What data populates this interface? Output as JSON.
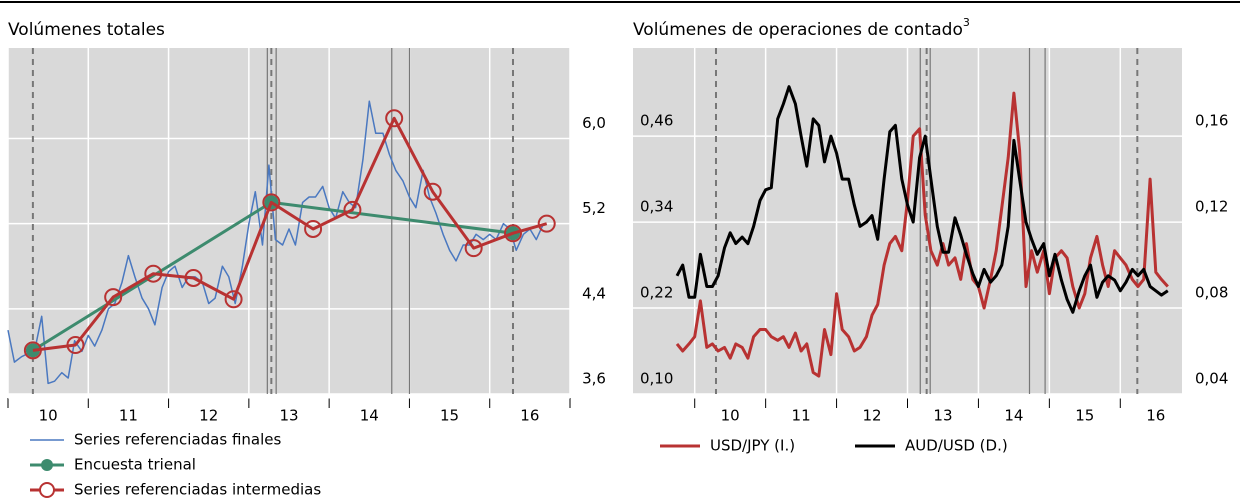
{
  "chart_data": [
    {
      "type": "line",
      "title": "Volúmenes totales",
      "yaxis_side": "right",
      "xlim": [
        10,
        17
      ],
      "xticks": [
        10,
        11,
        12,
        13,
        14,
        15,
        16,
        17
      ],
      "xtick_labels": [
        {
          "value": 10.5,
          "label": "10"
        },
        {
          "value": 11.5,
          "label": "11"
        },
        {
          "value": 12.5,
          "label": "12"
        },
        {
          "value": 13.5,
          "label": "13"
        },
        {
          "value": 14.5,
          "label": "14"
        },
        {
          "value": 15.5,
          "label": "15"
        },
        {
          "value": 16.5,
          "label": "16"
        }
      ],
      "ylim": [
        3.6,
        6.85
      ],
      "yticks": [
        {
          "value": 3.6,
          "label": "3,6"
        },
        {
          "value": 4.4,
          "label": "4,4"
        },
        {
          "value": 5.2,
          "label": "5,2"
        },
        {
          "value": 6.0,
          "label": "6,0"
        }
      ],
      "grid": true,
      "dashed_lines": [
        10.31,
        13.28,
        16.29
      ],
      "solid_lines": [
        13.23,
        13.34,
        14.78,
        15.0
      ],
      "series": [
        {
          "name": "Series referenciadas finales",
          "color": "#4a78c0",
          "marker": "none",
          "x": [
            10.0,
            10.08,
            10.17,
            10.25,
            10.33,
            10.42,
            10.5,
            10.58,
            10.67,
            10.75,
            10.83,
            10.92,
            11.0,
            11.08,
            11.17,
            11.25,
            11.33,
            11.42,
            11.5,
            11.58,
            11.67,
            11.75,
            11.83,
            11.92,
            12.0,
            12.08,
            12.17,
            12.25,
            12.33,
            12.42,
            12.5,
            12.58,
            12.67,
            12.75,
            12.83,
            12.92,
            13.0,
            13.08,
            13.17,
            13.25,
            13.33,
            13.42,
            13.5,
            13.58,
            13.67,
            13.75,
            13.83,
            13.92,
            14.0,
            14.08,
            14.17,
            14.25,
            14.33,
            14.42,
            14.5,
            14.58,
            14.67,
            14.75,
            14.83,
            14.92,
            15.0,
            15.08,
            15.17,
            15.25,
            15.33,
            15.42,
            15.5,
            15.58,
            15.67,
            15.75,
            15.83,
            15.92,
            16.0,
            16.08,
            16.17,
            16.25,
            16.33,
            16.42,
            16.5,
            16.58,
            16.67
          ],
          "values": [
            4.2,
            3.9,
            3.95,
            3.98,
            4.0,
            4.33,
            3.7,
            3.72,
            3.8,
            3.75,
            4.1,
            4.0,
            4.15,
            4.05,
            4.2,
            4.4,
            4.45,
            4.65,
            4.9,
            4.7,
            4.5,
            4.4,
            4.25,
            4.6,
            4.75,
            4.8,
            4.6,
            4.7,
            4.7,
            4.65,
            4.45,
            4.5,
            4.8,
            4.7,
            4.45,
            4.8,
            5.2,
            5.5,
            5.0,
            5.75,
            5.05,
            5.0,
            5.15,
            5.0,
            5.4,
            5.45,
            5.45,
            5.55,
            5.35,
            5.25,
            5.5,
            5.4,
            5.35,
            5.8,
            6.35,
            6.05,
            6.05,
            5.85,
            5.7,
            5.6,
            5.45,
            5.35,
            5.7,
            5.45,
            5.3,
            5.1,
            4.95,
            4.85,
            5.0,
            5.0,
            5.1,
            5.05,
            5.1,
            5.05,
            5.2,
            5.15,
            4.95,
            5.1,
            5.15,
            5.05,
            5.2
          ]
        },
        {
          "name": "Encuesta trienal",
          "color": "#3d8b6e",
          "marker": "filled-circle",
          "x": [
            10.31,
            13.28,
            16.29
          ],
          "values": [
            4.01,
            5.4,
            5.11
          ]
        },
        {
          "name": "Series referenciadas intermedias",
          "color": "#b83232",
          "marker": "open-circle",
          "x": [
            10.31,
            10.84,
            11.31,
            11.81,
            12.31,
            12.81,
            13.28,
            13.8,
            14.29,
            14.81,
            15.29,
            15.8,
            16.29,
            16.71
          ],
          "values": [
            4.01,
            4.06,
            4.51,
            4.73,
            4.69,
            4.49,
            5.4,
            5.15,
            5.33,
            6.19,
            5.5,
            4.97,
            5.11,
            5.2
          ]
        }
      ]
    },
    {
      "type": "line",
      "title": "Volúmenes de operaciones de contado",
      "title_note": "3",
      "xlim": [
        9.13,
        16.87
      ],
      "xticks": [
        10,
        11,
        12,
        13,
        14,
        15,
        16
      ],
      "xtick_labels": [
        {
          "value": 10.5,
          "label": "10"
        },
        {
          "value": 11.5,
          "label": "11"
        },
        {
          "value": 12.5,
          "label": "12"
        },
        {
          "value": 13.5,
          "label": "13"
        },
        {
          "value": 14.5,
          "label": "14"
        },
        {
          "value": 15.5,
          "label": "15"
        },
        {
          "value": 16.5,
          "label": "16"
        }
      ],
      "ylim": [
        0.1,
        0.583
      ],
      "yticks": [
        {
          "value": 0.1,
          "label": "0,10"
        },
        {
          "value": 0.22,
          "label": "0,22"
        },
        {
          "value": 0.34,
          "label": "0,34"
        },
        {
          "value": 0.46,
          "label": "0,46"
        }
      ],
      "y2lim": [
        0.04,
        0.201
      ],
      "y2ticks": [
        {
          "value": 0.04,
          "label": "0,04"
        },
        {
          "value": 0.08,
          "label": "0,08"
        },
        {
          "value": 0.12,
          "label": "0,12"
        },
        {
          "value": 0.16,
          "label": "0,16"
        }
      ],
      "grid": true,
      "dashed_lines": [
        10.3,
        13.27,
        16.24
      ],
      "solid_lines": [
        13.18,
        13.32,
        14.72,
        14.94
      ],
      "series": [
        {
          "name": "USD/JPY (I.)",
          "color": "#b83232",
          "marker": "none",
          "axis": "y",
          "x": [
            9.75,
            9.83,
            9.92,
            10.0,
            10.08,
            10.17,
            10.25,
            10.33,
            10.42,
            10.5,
            10.58,
            10.67,
            10.75,
            10.83,
            10.92,
            11.0,
            11.08,
            11.17,
            11.25,
            11.33,
            11.42,
            11.5,
            11.58,
            11.67,
            11.75,
            11.83,
            11.92,
            12.0,
            12.08,
            12.17,
            12.25,
            12.33,
            12.42,
            12.5,
            12.58,
            12.67,
            12.75,
            12.83,
            12.92,
            13.0,
            13.08,
            13.17,
            13.25,
            13.33,
            13.42,
            13.5,
            13.58,
            13.67,
            13.75,
            13.83,
            13.92,
            14.0,
            14.08,
            14.17,
            14.25,
            14.33,
            14.42,
            14.5,
            14.58,
            14.67,
            14.75,
            14.83,
            14.92,
            15.0,
            15.08,
            15.17,
            15.25,
            15.33,
            15.42,
            15.5,
            15.58,
            15.67,
            15.75,
            15.83,
            15.92,
            16.0,
            16.08,
            16.17,
            16.25,
            16.33,
            16.42,
            16.5,
            16.58,
            16.67
          ],
          "values": [
            0.17,
            0.16,
            0.17,
            0.18,
            0.23,
            0.165,
            0.17,
            0.16,
            0.165,
            0.15,
            0.17,
            0.165,
            0.15,
            0.18,
            0.19,
            0.19,
            0.18,
            0.175,
            0.18,
            0.165,
            0.185,
            0.16,
            0.17,
            0.13,
            0.125,
            0.19,
            0.155,
            0.24,
            0.19,
            0.18,
            0.16,
            0.165,
            0.18,
            0.21,
            0.225,
            0.28,
            0.31,
            0.32,
            0.3,
            0.37,
            0.46,
            0.47,
            0.35,
            0.3,
            0.28,
            0.31,
            0.28,
            0.29,
            0.26,
            0.31,
            0.26,
            0.25,
            0.22,
            0.26,
            0.3,
            0.36,
            0.43,
            0.52,
            0.44,
            0.25,
            0.3,
            0.27,
            0.3,
            0.24,
            0.29,
            0.3,
            0.29,
            0.25,
            0.22,
            0.24,
            0.29,
            0.32,
            0.28,
            0.25,
            0.3,
            0.29,
            0.28,
            0.26,
            0.25,
            0.26,
            0.4,
            0.27,
            0.26,
            0.25
          ]
        },
        {
          "name": "AUD/USD (D.)",
          "color": "#000000",
          "marker": "none",
          "axis": "y2",
          "x": [
            9.75,
            9.83,
            9.92,
            10.0,
            10.08,
            10.17,
            10.25,
            10.33,
            10.42,
            10.5,
            10.58,
            10.67,
            10.75,
            10.83,
            10.92,
            11.0,
            11.08,
            11.17,
            11.25,
            11.33,
            11.42,
            11.5,
            11.58,
            11.67,
            11.75,
            11.83,
            11.92,
            12.0,
            12.08,
            12.17,
            12.25,
            12.33,
            12.42,
            12.5,
            12.58,
            12.67,
            12.75,
            12.83,
            12.92,
            13.0,
            13.08,
            13.17,
            13.25,
            13.33,
            13.42,
            13.5,
            13.58,
            13.67,
            13.75,
            13.83,
            13.92,
            14.0,
            14.08,
            14.17,
            14.25,
            14.33,
            14.42,
            14.5,
            14.58,
            14.67,
            14.75,
            14.83,
            14.92,
            15.0,
            15.08,
            15.17,
            15.25,
            15.33,
            15.42,
            15.5,
            15.58,
            15.67,
            15.75,
            15.83,
            15.92,
            16.0,
            16.08,
            16.17,
            16.25,
            16.33,
            16.42,
            16.5,
            16.58,
            16.67
          ],
          "values": [
            0.095,
            0.1,
            0.085,
            0.085,
            0.105,
            0.09,
            0.09,
            0.095,
            0.108,
            0.115,
            0.11,
            0.113,
            0.11,
            0.118,
            0.13,
            0.135,
            0.136,
            0.168,
            0.175,
            0.183,
            0.175,
            0.16,
            0.146,
            0.168,
            0.165,
            0.148,
            0.16,
            0.152,
            0.14,
            0.14,
            0.128,
            0.118,
            0.12,
            0.123,
            0.112,
            0.14,
            0.162,
            0.165,
            0.14,
            0.128,
            0.12,
            0.15,
            0.16,
            0.14,
            0.118,
            0.106,
            0.106,
            0.122,
            0.114,
            0.105,
            0.096,
            0.09,
            0.098,
            0.092,
            0.095,
            0.1,
            0.118,
            0.158,
            0.14,
            0.12,
            0.112,
            0.105,
            0.11,
            0.095,
            0.105,
            0.093,
            0.084,
            0.078,
            0.088,
            0.095,
            0.1,
            0.085,
            0.092,
            0.095,
            0.093,
            0.088,
            0.092,
            0.098,
            0.095,
            0.098,
            0.09,
            0.088,
            0.086,
            0.088
          ]
        }
      ]
    }
  ]
}
